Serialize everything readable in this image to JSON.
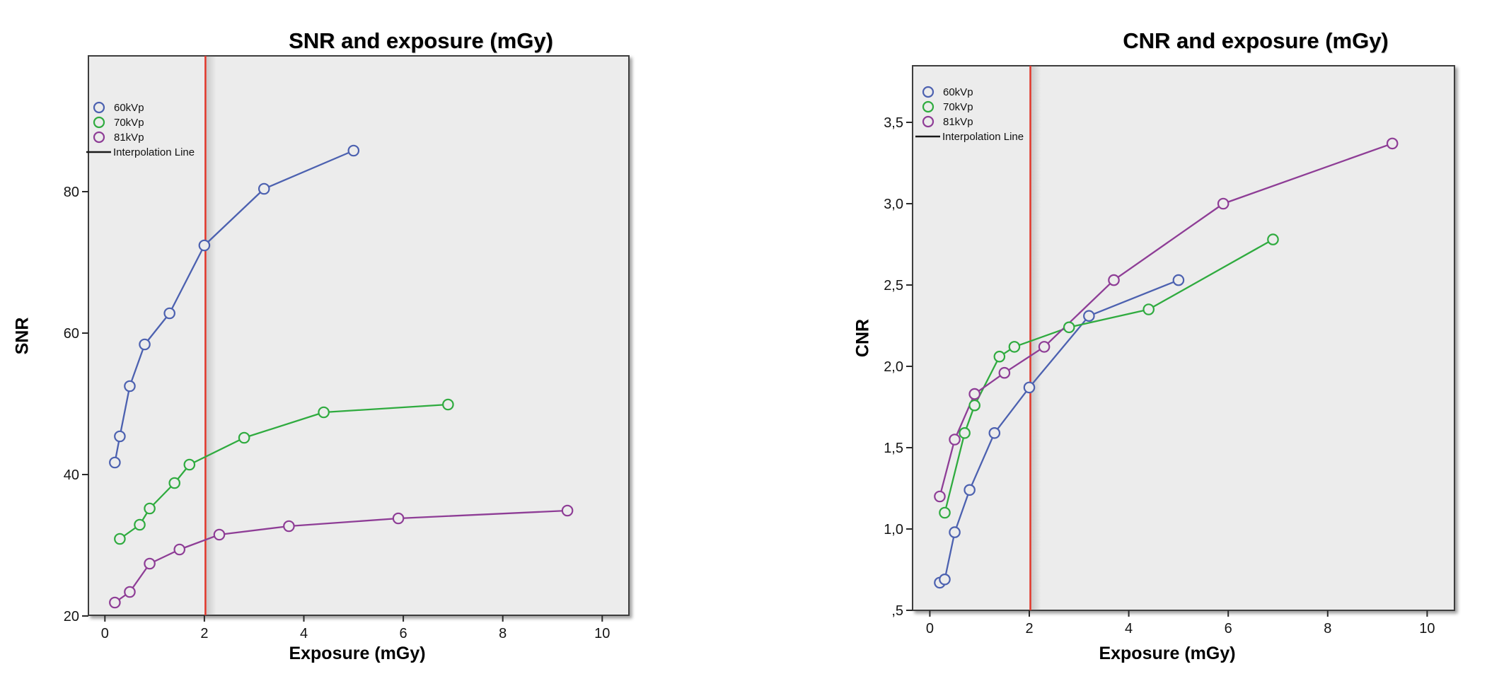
{
  "figure": {
    "background_color": "#ffffff",
    "plot_background_color": "#ececec",
    "plot_border_color": "#3d3d3d",
    "interpolation_line_color": "#e2372b",
    "series_colors": {
      "60kVp": "#4c61b0",
      "70kVp": "#2fab3f",
      "81kVp": "#8e3d96"
    }
  },
  "chart_data": [
    {
      "type": "line",
      "title": "SNR and exposure (mGy)",
      "xlabel": "Exposure (mGy)",
      "ylabel": "SNR",
      "xlim": [
        -0.33,
        10.54
      ],
      "ylim": [
        20,
        99.1
      ],
      "x_ticks": [
        0,
        2,
        4,
        6,
        8,
        10
      ],
      "x_tick_labels": [
        "0",
        "2",
        "4",
        "6",
        "8",
        "10"
      ],
      "y_ticks": [
        20,
        40,
        60,
        80
      ],
      "y_tick_labels": [
        "20",
        "40",
        "60",
        "80"
      ],
      "grid": false,
      "legend_position": "top-left",
      "legend_entries": [
        "60kVp",
        "70kVp",
        "81kVp",
        "Interpolation Line"
      ],
      "annotation": {
        "type": "vertical-line",
        "label": "Interpolation Line",
        "x": 2,
        "color": "#e2372b"
      },
      "series": [
        {
          "name": "60kVp",
          "color": "#4c61b0",
          "marker": "circle",
          "x": [
            0.2,
            0.3,
            0.5,
            0.8,
            1.3,
            2.0,
            3.2,
            5.0
          ],
          "y": [
            41.7,
            45.4,
            52.5,
            58.4,
            62.8,
            72.4,
            80.4,
            85.8
          ]
        },
        {
          "name": "70kVp",
          "color": "#2fab3f",
          "marker": "circle",
          "x": [
            0.3,
            0.7,
            0.9,
            1.4,
            1.7,
            2.8,
            4.4,
            6.9
          ],
          "y": [
            30.9,
            32.9,
            35.2,
            38.8,
            41.4,
            45.2,
            48.8,
            49.9
          ]
        },
        {
          "name": "81kVp",
          "color": "#8e3d96",
          "marker": "circle",
          "x": [
            0.2,
            0.5,
            0.9,
            1.5,
            2.3,
            3.7,
            5.9,
            9.3
          ],
          "y": [
            21.9,
            23.4,
            27.4,
            29.4,
            31.5,
            32.7,
            33.8,
            34.9
          ]
        }
      ]
    },
    {
      "type": "line",
      "title": "CNR and exposure (mGy)",
      "xlabel": "Exposure (mGy)",
      "ylabel": "CNR",
      "xlim": [
        -0.35,
        10.55
      ],
      "ylim": [
        0.5,
        3.85
      ],
      "x_ticks": [
        0,
        2,
        4,
        6,
        8,
        10
      ],
      "x_tick_labels": [
        "0",
        "2",
        "4",
        "6",
        "8",
        "10"
      ],
      "y_ticks": [
        0.5,
        1.0,
        1.5,
        2.0,
        2.5,
        3.0,
        3.5
      ],
      "y_tick_labels": [
        ",5",
        "1,0",
        "1,5",
        "2,0",
        "2,5",
        "3,0",
        "3,5"
      ],
      "grid": false,
      "legend_position": "top-left",
      "legend_entries": [
        "60kVp",
        "70kVp",
        "81kVp",
        "Interpolation Line"
      ],
      "annotation": {
        "type": "vertical-line",
        "label": "Interpolation Line",
        "x": 2,
        "color": "#e2372b"
      },
      "series": [
        {
          "name": "60kVp",
          "color": "#4c61b0",
          "marker": "circle",
          "x": [
            0.2,
            0.3,
            0.5,
            0.8,
            1.3,
            2.0,
            3.2,
            5.0
          ],
          "y": [
            0.67,
            0.69,
            0.98,
            1.24,
            1.59,
            1.87,
            2.31,
            2.53
          ]
        },
        {
          "name": "70kVp",
          "color": "#2fab3f",
          "marker": "circle",
          "x": [
            0.3,
            0.7,
            0.9,
            1.4,
            1.7,
            2.8,
            4.4,
            6.9
          ],
          "y": [
            1.1,
            1.59,
            1.76,
            2.06,
            2.12,
            2.24,
            2.35,
            2.78
          ]
        },
        {
          "name": "81kVp",
          "color": "#8e3d96",
          "marker": "circle",
          "x": [
            0.2,
            0.5,
            0.9,
            1.5,
            2.3,
            3.7,
            5.9,
            9.3
          ],
          "y": [
            1.2,
            1.55,
            1.83,
            1.96,
            2.12,
            2.53,
            3.0,
            3.37
          ]
        }
      ]
    }
  ]
}
